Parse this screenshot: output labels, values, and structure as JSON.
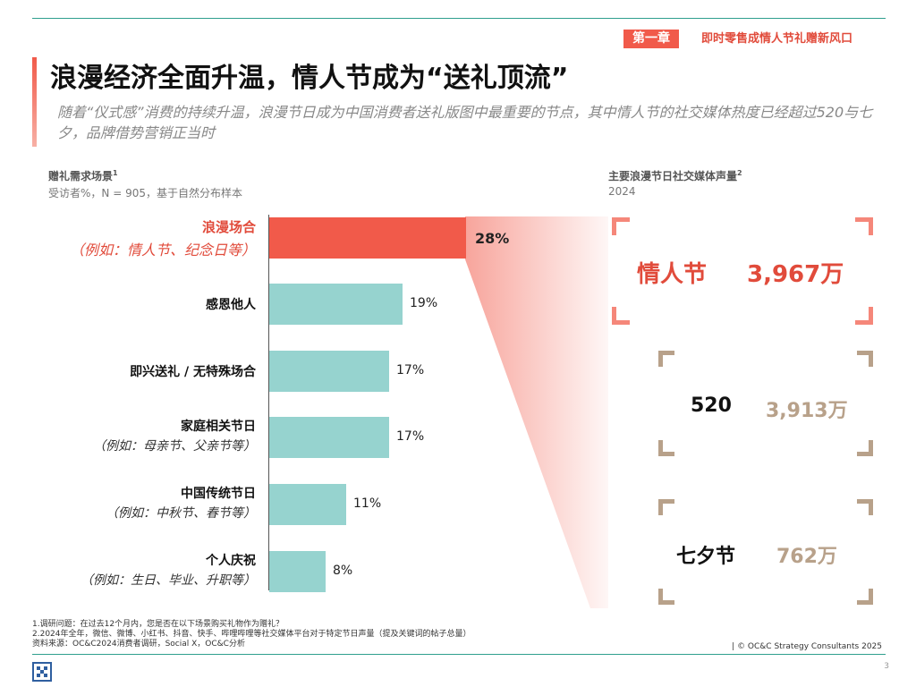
{
  "header": {
    "chapter_tag": "第一章",
    "chapter_title": "即时零售成情人节礼赠新风口"
  },
  "title": "浪漫经济全面升温，情人节成为“送礼顶流”",
  "subtitle": "随着“仪式感”消费的持续升温，浪漫节日成为中国消费者送礼版图中最重要的节点，其中情人节的社交媒体热度已经超过520与七夕，品牌借势营销正当时",
  "chart_data": {
    "type": "bar",
    "orientation": "horizontal",
    "title": "赠礼需求场景",
    "title_sup": "1",
    "subtitle": "受访者%，N = 905，基于自然分布样本",
    "unit": "%",
    "categories": [
      {
        "label": "浪漫场合",
        "example": "（例如：情人节、纪念日等）",
        "value": 28,
        "value_label": "28%",
        "highlight": true
      },
      {
        "label": "感恩他人",
        "example": "",
        "value": 19,
        "value_label": "19%",
        "highlight": false
      },
      {
        "label": "即兴送礼 / 无特殊场合",
        "example": "",
        "value": 17,
        "value_label": "17%",
        "highlight": false
      },
      {
        "label": "家庭相关节日",
        "example": "（例如：母亲节、父亲节等）",
        "value": 17,
        "value_label": "17%",
        "highlight": false
      },
      {
        "label": "中国传统节日",
        "example": "（例如：中秋节、春节等）",
        "value": 11,
        "value_label": "11%",
        "highlight": false
      },
      {
        "label": "个人庆祝",
        "example": "（例如：生日、毕业、升职等）",
        "value": 8,
        "value_label": "8%",
        "highlight": false
      }
    ],
    "xlim": [
      0,
      30
    ],
    "colors": {
      "highlight": "#f15a4a",
      "default": "#96d3cf"
    }
  },
  "social": {
    "title": "主要浪漫节日社交媒体声量",
    "title_sup": "2",
    "year": "2024",
    "items": [
      {
        "name": "情人节",
        "value": "3,967万",
        "name_color": "#e14b3b",
        "value_color": "#e14b3b"
      },
      {
        "name": "520",
        "value": "3,913万",
        "name_color": "#111111",
        "value_color": "#b8a18a"
      },
      {
        "name": "七夕节",
        "value": "762万",
        "name_color": "#111111",
        "value_color": "#b8a18a"
      }
    ]
  },
  "notes": [
    "1.调研问题：在过去12个月内，您是否在以下场景购买礼物作为赠礼？",
    "2.2024年全年，微信、微博、小红书、抖音、快手、哔哩哔哩等社交媒体平台对于特定节日声量（提及关键词的帖子总量）",
    "资料来源：OC&C2024消费者调研，Social X，OC&C分析"
  ],
  "copyright": "| © OC&C Strategy Consultants 2025",
  "page_number": "3"
}
